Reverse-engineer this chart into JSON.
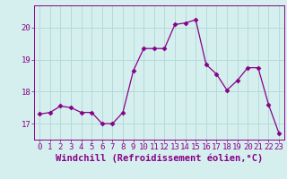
{
  "x": [
    0,
    1,
    2,
    3,
    4,
    5,
    6,
    7,
    8,
    9,
    10,
    11,
    12,
    13,
    14,
    15,
    16,
    17,
    18,
    19,
    20,
    21,
    22,
    23
  ],
  "y": [
    17.3,
    17.35,
    17.55,
    17.5,
    17.35,
    17.35,
    17.0,
    17.0,
    17.35,
    18.65,
    19.35,
    19.35,
    19.35,
    20.1,
    20.15,
    20.25,
    18.85,
    18.55,
    18.05,
    18.35,
    18.75,
    18.75,
    17.6,
    16.7
  ],
  "line_color": "#880088",
  "marker": "D",
  "marker_size": 2.5,
  "bg_color": "#d5efee",
  "grid_color": "#aed8d5",
  "xlabel": "Windchill (Refroidissement éolien,°C)",
  "xlabel_fontsize": 7.5,
  "tick_fontsize": 6.5,
  "ylim": [
    16.5,
    20.7
  ],
  "yticks": [
    17,
    18,
    19,
    20
  ],
  "xticks": [
    0,
    1,
    2,
    3,
    4,
    5,
    6,
    7,
    8,
    9,
    10,
    11,
    12,
    13,
    14,
    15,
    16,
    17,
    18,
    19,
    20,
    21,
    22,
    23
  ],
  "xlim": [
    -0.5,
    23.5
  ]
}
